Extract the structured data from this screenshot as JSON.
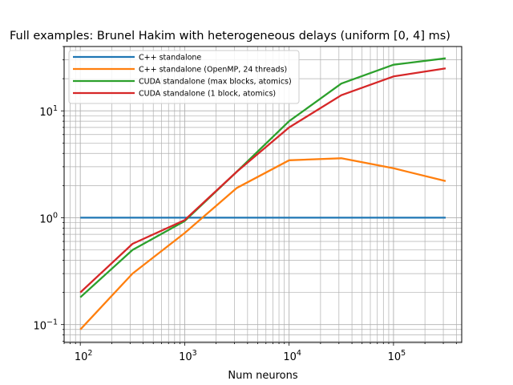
{
  "chart_data": {
    "type": "line",
    "title": "Full examples: Brunel Hakim with heterogeneous delays (uniform [0, 4] ms)",
    "xlabel": "Num neurons",
    "ylabel": "",
    "xscale": "log",
    "yscale": "log",
    "xlim": [
      70,
      450000
    ],
    "ylim": [
      0.068,
      40
    ],
    "grid": true,
    "legend_position": "top-left",
    "x_ticks": [
      {
        "value": 100,
        "base": "10",
        "exp": "2"
      },
      {
        "value": 1000,
        "base": "10",
        "exp": "3"
      },
      {
        "value": 10000,
        "base": "10",
        "exp": "4"
      },
      {
        "value": 100000,
        "base": "10",
        "exp": "5"
      }
    ],
    "y_ticks": [
      {
        "value": 0.1,
        "base": "10",
        "exp": "−1"
      },
      {
        "value": 1,
        "base": "10",
        "exp": "0"
      },
      {
        "value": 10,
        "base": "10",
        "exp": "1"
      }
    ],
    "x": [
      100,
      316,
      1000,
      3162,
      10000,
      31623,
      100000,
      316228
    ],
    "series": [
      {
        "name": "C++ standalone",
        "color": "#1f77b4",
        "values": [
          1,
          1,
          1,
          1,
          1,
          1,
          1,
          1
        ]
      },
      {
        "name": "C++ standalone (OpenMP, 24 threads)",
        "color": "#ff7f0e",
        "values": [
          0.09,
          0.3,
          0.72,
          1.9,
          3.45,
          3.6,
          2.9,
          2.2
        ]
      },
      {
        "name": "CUDA standalone (max blocks, atomics)",
        "color": "#2ca02c",
        "values": [
          0.18,
          0.5,
          0.93,
          2.7,
          8.0,
          18.0,
          27.0,
          31.0
        ]
      },
      {
        "name": "CUDA standalone (1 block, atomics)",
        "color": "#d62728",
        "values": [
          0.2,
          0.57,
          0.95,
          2.7,
          7.0,
          14.0,
          21.0,
          25.0
        ]
      }
    ]
  }
}
